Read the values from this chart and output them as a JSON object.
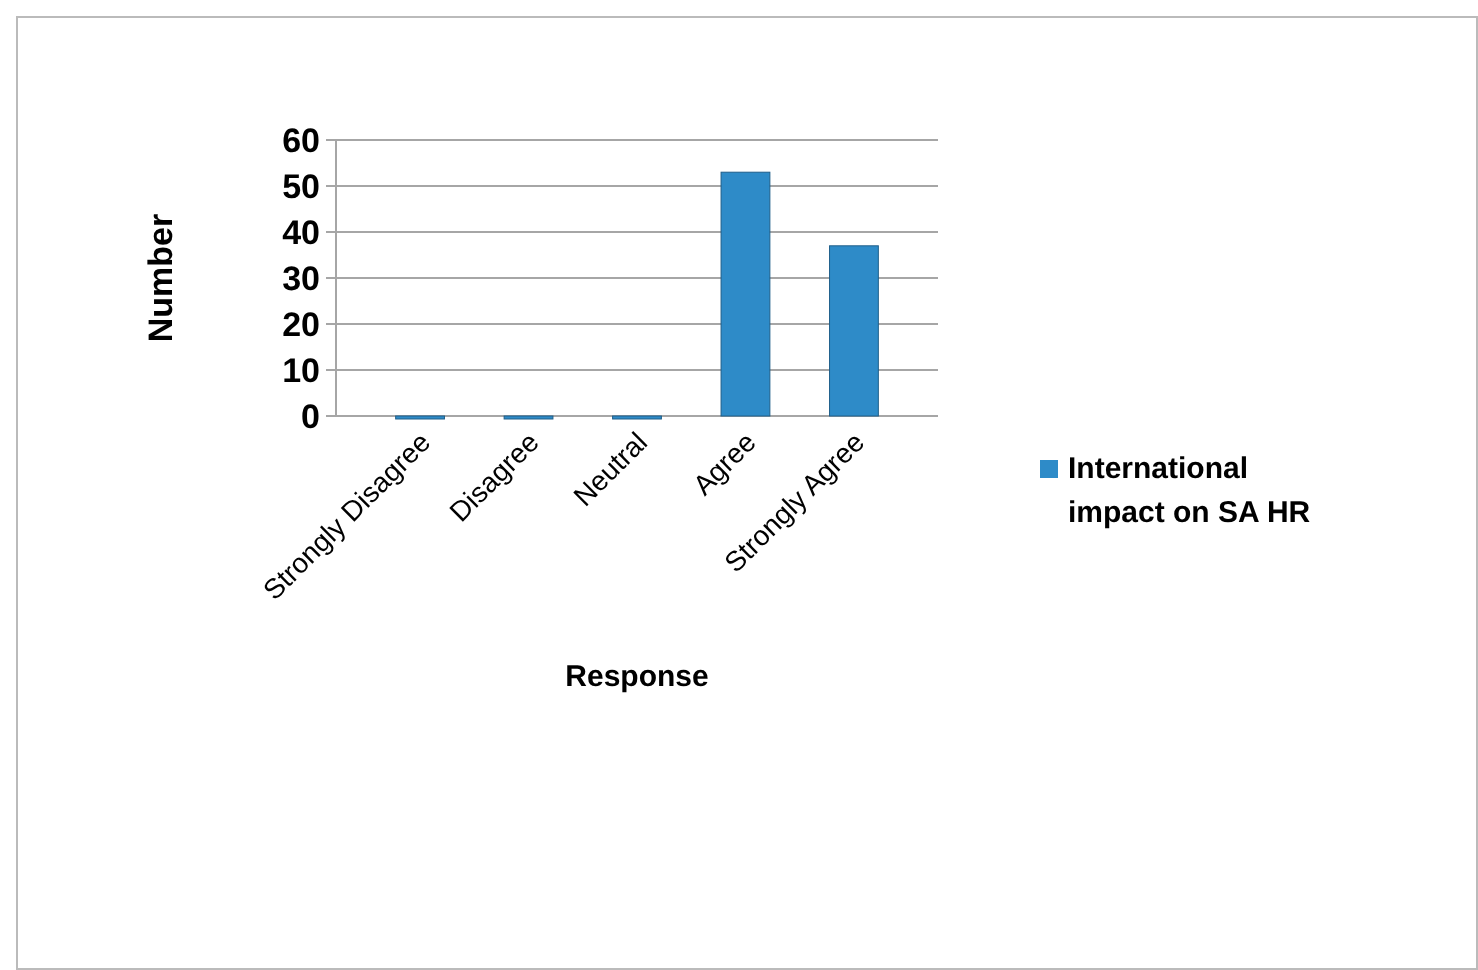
{
  "chart_data": {
    "type": "bar",
    "xlabel": "Response",
    "ylabel": "Number",
    "categories": [
      "Strongly Disagree",
      "Disagree",
      "Neutral",
      "Agree",
      "Strongly Agree"
    ],
    "series": [
      {
        "name": "International impact on SA HR",
        "color": "#2e8bc8",
        "values": [
          0,
          0,
          0,
          53,
          37
        ]
      }
    ],
    "ylim": [
      0,
      60
    ],
    "yticks": [
      0,
      10,
      20,
      30,
      40,
      50,
      60
    ],
    "grid": "y",
    "legend": "right"
  }
}
